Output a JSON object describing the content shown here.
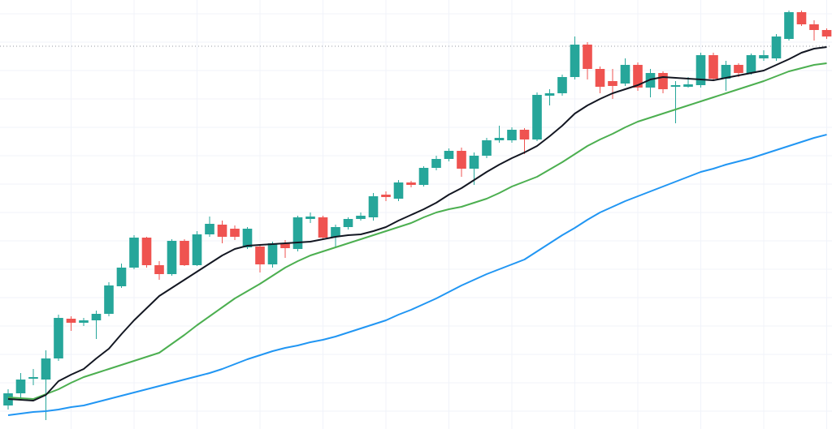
{
  "chart_data": {
    "type": "candlestick",
    "x": [
      0,
      1,
      2,
      3,
      4,
      5,
      6,
      7,
      8,
      9,
      10,
      11,
      12,
      13,
      14,
      15,
      16,
      17,
      18,
      19,
      20,
      21,
      22,
      23,
      24,
      25,
      26,
      27,
      28,
      29,
      30,
      31,
      32,
      33,
      34,
      35,
      36,
      37,
      38,
      39,
      40,
      41,
      42,
      43,
      44,
      45,
      46,
      47,
      48,
      49,
      50,
      51,
      52,
      53,
      54,
      55,
      56,
      57,
      58,
      59,
      60,
      61,
      62,
      63,
      64,
      65
    ],
    "open": [
      29,
      44,
      62,
      61,
      87,
      136,
      131,
      134,
      142,
      176,
      199,
      236,
      202,
      191,
      232,
      202,
      240,
      252,
      247,
      224,
      225,
      203,
      229,
      222,
      259,
      261,
      237,
      249,
      259,
      261,
      289,
      284,
      304,
      301,
      322,
      333,
      343,
      321,
      337,
      356,
      356,
      369,
      357,
      411,
      414,
      434,
      474,
      444,
      429,
      426,
      449,
      421,
      439,
      422,
      422,
      424,
      461,
      432,
      449,
      439,
      457,
      457,
      481,
      514,
      499,
      492
    ],
    "high": [
      49,
      69,
      74,
      97,
      141,
      139,
      137,
      146,
      181,
      204,
      239,
      237,
      207,
      234,
      234,
      244,
      262,
      257,
      251,
      249,
      227,
      231,
      233,
      263,
      267,
      263,
      252,
      261,
      267,
      291,
      293,
      307,
      306,
      324,
      337,
      346,
      347,
      341,
      359,
      374,
      372,
      371,
      415,
      419,
      437,
      484,
      477,
      447,
      444,
      457,
      452,
      444,
      441,
      429,
      434,
      464,
      464,
      454,
      451,
      463,
      467,
      487,
      516,
      516,
      504,
      494
    ],
    "low": [
      24,
      39,
      54,
      11,
      84,
      121,
      127,
      111,
      139,
      174,
      197,
      199,
      184,
      189,
      201,
      201,
      237,
      229,
      233,
      222,
      193,
      199,
      211,
      219,
      254,
      233,
      224,
      246,
      257,
      257,
      281,
      281,
      298,
      299,
      319,
      330,
      311,
      301,
      334,
      353,
      353,
      339,
      355,
      399,
      411,
      431,
      431,
      414,
      407,
      423,
      417,
      409,
      414,
      377,
      421,
      421,
      429,
      417,
      434,
      437,
      454,
      454,
      479,
      497,
      479,
      481
    ],
    "close": [
      44,
      61,
      64,
      87,
      137,
      131,
      134,
      142,
      177,
      199,
      236,
      202,
      191,
      232,
      202,
      240,
      253,
      237,
      237,
      247,
      203,
      229,
      223,
      261,
      262,
      236,
      249,
      259,
      263,
      287,
      286,
      304,
      301,
      322,
      333,
      343,
      321,
      337,
      356,
      359,
      369,
      357,
      412,
      414,
      434,
      474,
      444,
      422,
      423,
      449,
      421,
      439,
      419,
      424,
      425,
      461,
      432,
      449,
      439,
      461,
      461,
      484,
      514,
      499,
      492,
      484
    ],
    "up_color": "#26a69a",
    "down_color": "#ef5350",
    "moving_averages": [
      {
        "color": "#2196f3",
        "values": [
          17,
          19,
          21,
          22,
          24,
          27,
          29,
          33,
          37,
          41,
          45,
          49,
          53,
          57,
          61,
          65,
          69,
          74,
          80,
          86,
          91,
          96,
          100,
          103,
          107,
          110,
          114,
          119,
          124,
          129,
          134,
          141,
          147,
          154,
          161,
          169,
          177,
          184,
          191,
          197,
          203,
          209,
          219,
          229,
          239,
          248,
          258,
          267,
          274,
          281,
          287,
          293,
          299,
          305,
          311,
          317,
          321,
          326,
          330,
          334,
          339,
          344,
          349,
          354,
          359,
          363
        ]
      },
      {
        "color": "#4caf50",
        "values": [
          39,
          38,
          37,
          43,
          49,
          57,
          64,
          69,
          74,
          79,
          84,
          89,
          94,
          105,
          116,
          128,
          139,
          150,
          161,
          170,
          179,
          189,
          199,
          207,
          214,
          219,
          224,
          229,
          234,
          239,
          244,
          249,
          254,
          261,
          267,
          271,
          274,
          279,
          284,
          291,
          299,
          305,
          311,
          320,
          329,
          339,
          349,
          357,
          364,
          372,
          379,
          384,
          389,
          394,
          399,
          404,
          409,
          414,
          419,
          424,
          429,
          435,
          441,
          445,
          449,
          451
        ]
      },
      {
        "color": "#131722",
        "values": [
          37,
          36,
          35,
          42,
          59,
          67,
          74,
          87,
          99,
          117,
          134,
          149,
          164,
          174,
          184,
          194,
          204,
          214,
          222,
          226,
          227,
          228,
          229,
          230,
          231,
          234,
          237,
          239,
          240,
          244,
          249,
          257,
          264,
          271,
          279,
          289,
          297,
          307,
          317,
          326,
          334,
          341,
          349,
          361,
          374,
          389,
          399,
          407,
          414,
          419,
          424,
          431,
          434,
          433,
          432,
          431,
          430,
          433,
          436,
          439,
          442,
          449,
          456,
          464,
          469,
          471
        ]
      }
    ],
    "price_line": 472,
    "xlim": [
      -0.645,
      65.42
    ],
    "ylim": [
      0,
      529
    ],
    "xticks": [
      5,
      10,
      15,
      20,
      25,
      30,
      35,
      40,
      45,
      50,
      55,
      60,
      65
    ],
    "yticks": [
      22,
      57,
      92,
      127,
      162,
      197,
      232,
      267,
      302,
      337,
      372,
      407,
      442,
      477,
      512
    ],
    "grid": true
  }
}
